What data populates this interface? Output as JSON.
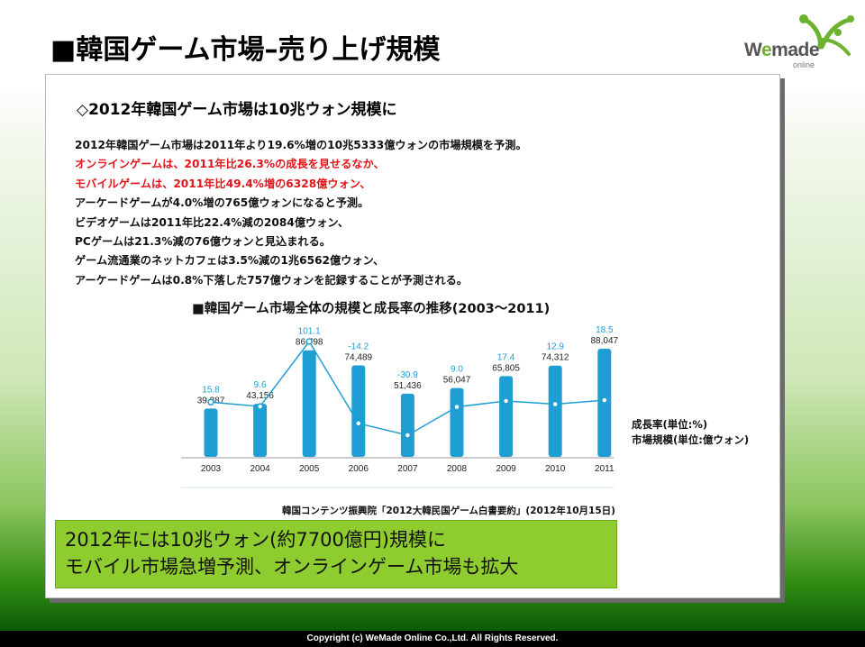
{
  "slide": {
    "title": "■韓国ゲーム市場–売り上げ規模",
    "logo": {
      "word_w": "W",
      "word_e": "e",
      "word_rest": "made",
      "sub": "online"
    }
  },
  "content": {
    "heading": "◇2012年韓国ゲーム市場は10兆ウォン規模に",
    "lines": [
      {
        "text": "2012年韓国ゲーム市場は2011年より19.6%増の10兆5333億ウォンの市場規模を予測。",
        "color": "#111111"
      },
      {
        "text": "オンラインゲームは、2011年比26.3%の成長を見せるなか、",
        "color": "#e0161c"
      },
      {
        "text": "モバイルゲームは、2011年比49.4%増の6328億ウォン、",
        "color": "#e0161c"
      },
      {
        "text": "アーケードゲームが4.0%増の765億ウォンになると予測。",
        "color": "#111111"
      },
      {
        "text": "ビデオゲームは2011年比22.4%減の2084億ウォン、",
        "color": "#111111"
      },
      {
        "text": "PCゲームは21.3%減の76億ウォンと見込まれる。",
        "color": "#111111"
      },
      {
        "text": "ゲーム流通業のネットカフェは3.5%減の1兆6562億ウォン、",
        "color": "#111111"
      },
      {
        "text": "アーケードゲームは0.8%下落した757億ウォンを記録することが予測される。",
        "color": "#111111"
      }
    ],
    "source": "韓国コンテンツ振興院「2012大韓民国ゲーム白書要約」(2012年10月15日)",
    "callout": [
      "2012年には10兆ウォン(約7700億円)規模に",
      "モバイル市場急増予測、オンラインゲーム市場も拡大"
    ]
  },
  "chart_data": {
    "type": "bar",
    "title": "■韓国ゲーム市場全体の規模と成長率の推移(2003〜2011)",
    "categories": [
      "2003",
      "2004",
      "2005",
      "2006",
      "2007",
      "2008",
      "2009",
      "2010",
      "2011"
    ],
    "series": [
      {
        "name": "市場規模(単位:億ウォン)",
        "type": "bar",
        "values": [
          39387,
          43156,
          86798,
          74489,
          51436,
          56047,
          65805,
          74312,
          88047
        ],
        "labels": [
          "39,387",
          "43,156",
          "86,798",
          "74,489",
          "51,436",
          "56,047",
          "65,805",
          "74,312",
          "88,047"
        ]
      },
      {
        "name": "成長率(単位:%)",
        "type": "line",
        "values": [
          15.8,
          9.6,
          101.1,
          -14.2,
          -30.9,
          9.0,
          17.4,
          12.9,
          18.5
        ],
        "labels": [
          "15.8",
          "9.6",
          "101.1",
          "-14.2",
          "-30.9",
          "9.0",
          "17.4",
          "12.9",
          "18.5"
        ]
      }
    ],
    "legend": [
      "成長率(単位:%)",
      "市場規模(単位:億ウォン)"
    ],
    "legend_position": "right",
    "colors": {
      "bar": "#1e9ed3",
      "line": "#1e9ed3",
      "growth_label": "#1e9ed3",
      "value_label": "#222222"
    }
  },
  "footer": "Copyright (c) WeMade Online Co.,Ltd. All Rights Reserved."
}
